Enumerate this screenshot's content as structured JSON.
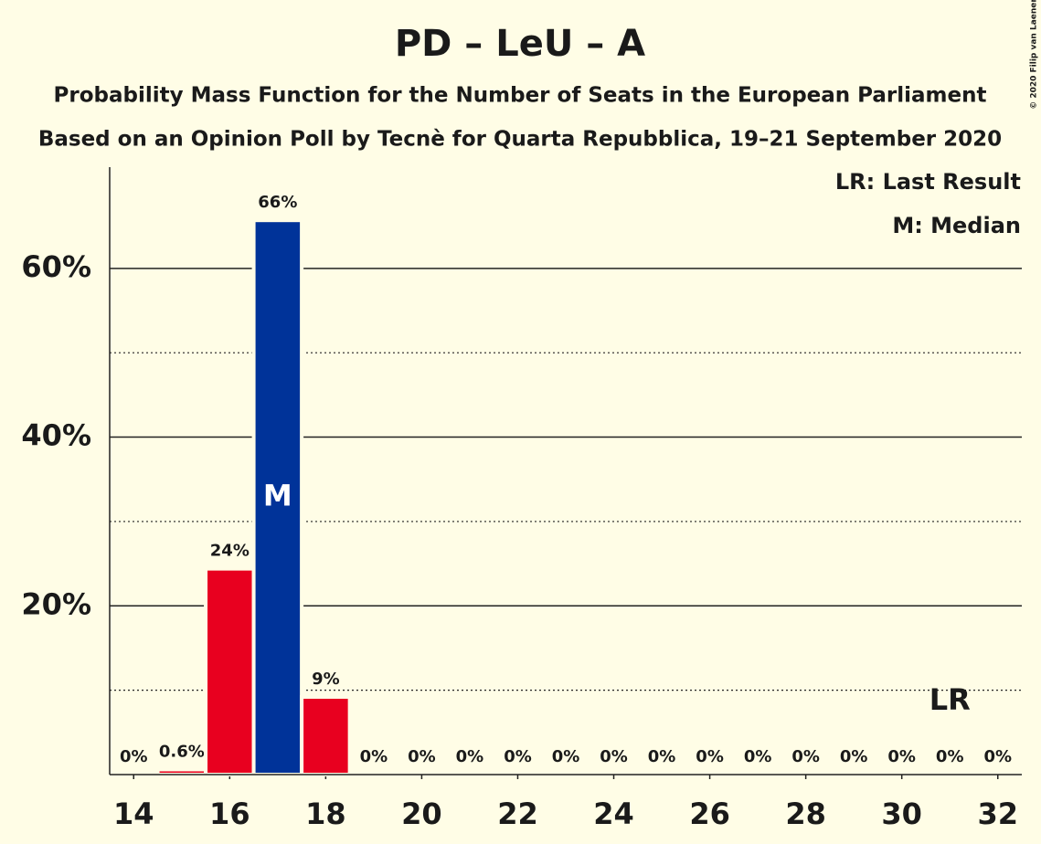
{
  "chart_data": {
    "type": "bar",
    "title": "PD – LeU – A",
    "subtitle": "Probability Mass Function for the Number of Seats in the European Parliament",
    "subtitle2": "Based on an Opinion Poll by Tecnè for Quarta Repubblica, 19–21 September 2020",
    "copyright": "© 2020 Filip van Laenen",
    "legend": [
      "LR: Last Result",
      "M: Median"
    ],
    "legend_position": "top-right",
    "x": [
      14,
      15,
      16,
      17,
      18,
      19,
      20,
      21,
      22,
      23,
      24,
      25,
      26,
      27,
      28,
      29,
      30,
      31,
      32
    ],
    "values": [
      0,
      0.6,
      24.4,
      65.7,
      9.2,
      0,
      0,
      0,
      0,
      0,
      0,
      0,
      0,
      0,
      0,
      0,
      0,
      0,
      0
    ],
    "value_labels": [
      "0%",
      "0.6%",
      "24%",
      "66%",
      "9%",
      "0%",
      "0%",
      "0%",
      "0%",
      "0%",
      "0%",
      "0%",
      "0%",
      "0%",
      "0%",
      "0%",
      "0%",
      "0%",
      "0%"
    ],
    "colors": [
      "#e8001f",
      "#e8001f",
      "#e8001f",
      "#003399",
      "#e8001f",
      "#e8001f",
      "#e8001f",
      "#e8001f",
      "#e8001f",
      "#e8001f",
      "#e8001f",
      "#e8001f",
      "#e8001f",
      "#e8001f",
      "#e8001f",
      "#e8001f",
      "#e8001f",
      "#e8001f",
      "#e8001f"
    ],
    "median": 17,
    "median_label": "M",
    "last_result": 31,
    "last_result_label": "LR",
    "xlim": [
      13.5,
      32.5
    ],
    "xticks": [
      14,
      16,
      18,
      20,
      22,
      24,
      26,
      28,
      30,
      32
    ],
    "ylim": [
      0,
      72
    ],
    "yticks": [
      {
        "value": 20,
        "label": "20%"
      },
      {
        "value": 40,
        "label": "40%"
      },
      {
        "value": 60,
        "label": "60%"
      }
    ],
    "minor_yticks": [
      10,
      30,
      50
    ],
    "grid": true
  }
}
